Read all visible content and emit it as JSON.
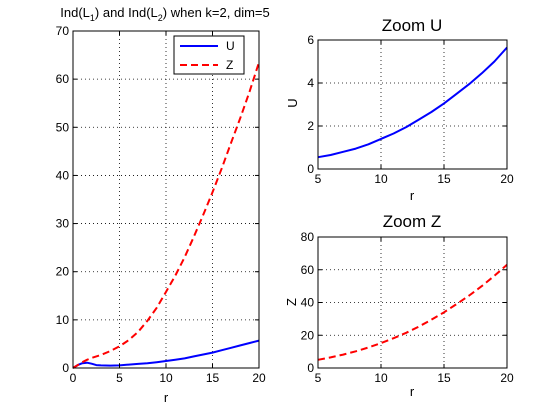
{
  "chart_data": [
    {
      "type": "line",
      "id": "main",
      "title_parts": [
        "Ind(L",
        "1",
        ") and Ind(L",
        "2",
        ") when k=2, dim=5"
      ],
      "xlabel": "r",
      "ylabel": "",
      "xlim": [
        0,
        20
      ],
      "ylim": [
        0,
        70
      ],
      "xticks": [
        0,
        5,
        10,
        15,
        20
      ],
      "yticks": [
        0,
        10,
        20,
        30,
        40,
        50,
        60,
        70
      ],
      "grid": true,
      "legend": {
        "placement": "top-right",
        "entries": [
          "U",
          "Z"
        ]
      },
      "series": [
        {
          "name": "U",
          "color": "#0000ff",
          "style": "solid",
          "x": [
            0,
            0.5,
            1,
            1.5,
            2,
            2.5,
            3,
            4,
            5,
            6,
            7,
            8,
            9,
            10,
            11,
            12,
            13,
            14,
            15,
            16,
            17,
            18,
            19,
            20
          ],
          "y": [
            0,
            0.6,
            1.0,
            1.1,
            0.9,
            0.6,
            0.55,
            0.5,
            0.55,
            0.7,
            0.85,
            1.0,
            1.2,
            1.45,
            1.7,
            2.0,
            2.4,
            2.8,
            3.2,
            3.7,
            4.2,
            4.7,
            5.2,
            5.7
          ]
        },
        {
          "name": "Z",
          "color": "#ff0000",
          "style": "dashed",
          "x": [
            0,
            0.5,
            1,
            1.5,
            2,
            3,
            4,
            5,
            6,
            7,
            8,
            9,
            10,
            11,
            12,
            13,
            14,
            15,
            16,
            17,
            18,
            19,
            20
          ],
          "y": [
            0,
            0.6,
            1.2,
            1.7,
            2.1,
            2.7,
            3.5,
            4.5,
            5.8,
            7.5,
            9.8,
            12.5,
            15.8,
            19.2,
            23.0,
            27.3,
            31.8,
            36.5,
            41.5,
            46.8,
            52.0,
            57.5,
            63.5
          ]
        }
      ]
    },
    {
      "type": "line",
      "id": "zoom-u",
      "title": "Zoom U",
      "xlabel": "r",
      "ylabel": "U",
      "xlim": [
        5,
        20
      ],
      "ylim": [
        0,
        6
      ],
      "xticks": [
        5,
        10,
        15,
        20
      ],
      "yticks": [
        0,
        2,
        4,
        6
      ],
      "grid": true,
      "series": [
        {
          "color": "#0000ff",
          "style": "solid",
          "x": [
            5,
            6,
            7,
            8,
            9,
            10,
            11,
            12,
            13,
            14,
            15,
            16,
            17,
            18,
            19,
            20
          ],
          "y": [
            0.55,
            0.65,
            0.8,
            0.95,
            1.15,
            1.4,
            1.65,
            1.95,
            2.3,
            2.65,
            3.05,
            3.5,
            3.95,
            4.45,
            5.0,
            5.65
          ]
        }
      ]
    },
    {
      "type": "line",
      "id": "zoom-z",
      "title": "Zoom Z",
      "xlabel": "r",
      "ylabel": "Z",
      "xlim": [
        5,
        20
      ],
      "ylim": [
        0,
        80
      ],
      "xticks": [
        5,
        10,
        15,
        20
      ],
      "yticks": [
        0,
        20,
        40,
        60,
        80
      ],
      "grid": true,
      "series": [
        {
          "color": "#ff0000",
          "style": "dashed",
          "x": [
            5,
            6,
            7,
            8,
            9,
            10,
            11,
            12,
            13,
            14,
            15,
            16,
            17,
            18,
            19,
            20
          ],
          "y": [
            5.0,
            6.5,
            8.2,
            10.2,
            12.5,
            15.2,
            18.2,
            21.5,
            25.3,
            29.5,
            34.0,
            39.0,
            44.3,
            50.0,
            56.3,
            63.0
          ]
        }
      ]
    }
  ]
}
